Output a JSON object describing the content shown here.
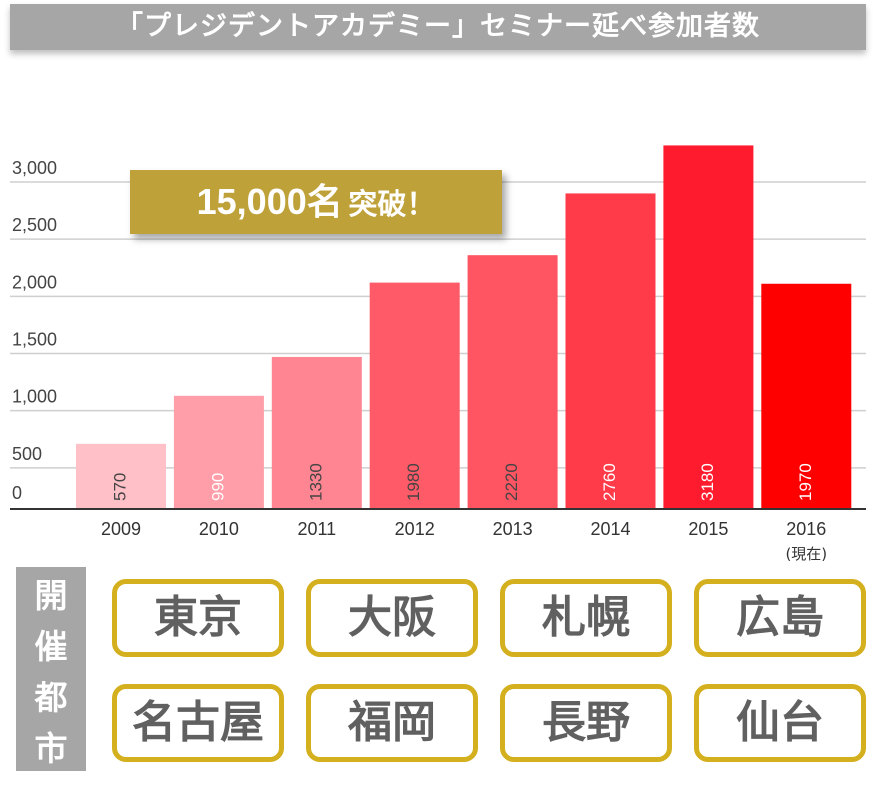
{
  "title": "「プレジデントアカデミー」セミナー延べ参加者数",
  "badge": {
    "number": "15,000名",
    "suffix": "突破！"
  },
  "chart_data": {
    "type": "bar",
    "categories": [
      "2009",
      "2010",
      "2011",
      "2012",
      "2013",
      "2014",
      "2015",
      "2016"
    ],
    "category_sub": [
      "",
      "",
      "",
      "",
      "",
      "",
      "",
      "(現在)"
    ],
    "values": [
      570,
      990,
      1330,
      1980,
      2220,
      2760,
      3180,
      1970
    ],
    "value_labels": [
      "570",
      "990",
      "1330",
      "1980",
      "2220",
      "2760",
      "3180",
      "1970"
    ],
    "bar_colors": [
      "#ffc0c7",
      "#ff9da8",
      "#ff8592",
      "#ff5a68",
      "#ff5462",
      "#ff3a49",
      "#ff1b2e",
      "#ff0000"
    ],
    "label_colors": [
      "#444444",
      "#ffffff",
      "#444444",
      "#444444",
      "#444444",
      "#ffffff",
      "#ffffff",
      "#ffffff"
    ],
    "y_ticks": [
      0,
      500,
      1000,
      1500,
      2000,
      2500,
      3000
    ],
    "y_tick_labels": [
      "0",
      "500",
      "1,000",
      "1,500",
      "2,000",
      "2,500",
      "3,000"
    ],
    "ylim": [
      0,
      3000
    ],
    "grid": true
  },
  "venues": {
    "label": "開催都市",
    "cities": [
      "東京",
      "大阪",
      "札幌",
      "広島",
      "名古屋",
      "福岡",
      "長野",
      "仙台"
    ]
  },
  "colors": {
    "gold": "#d4af1e",
    "badge": "#bfa13a",
    "gray": "#a6a6a6"
  }
}
